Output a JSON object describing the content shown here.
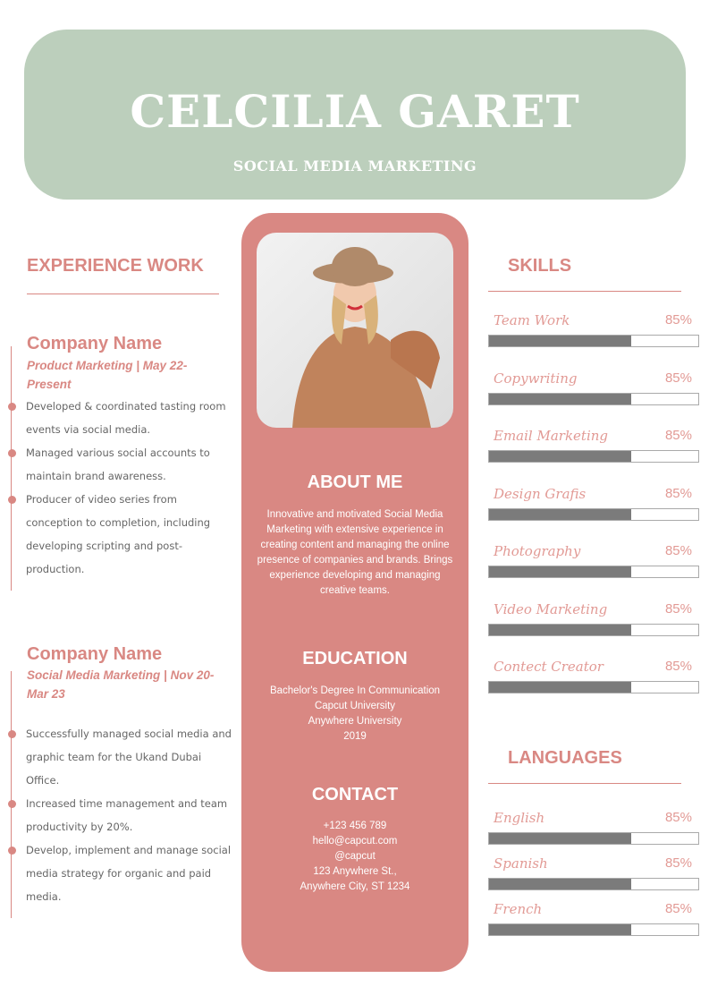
{
  "header": {
    "name": "CELCILIA GARET",
    "role": "SOCIAL MEDIA MARKETING"
  },
  "experience": {
    "title": "EXPERIENCE WORK",
    "jobs": [
      {
        "company": "Company Name",
        "subtitle": "Product Marketing | May 22-Present",
        "bullets": [
          "Developed & coordinated tasting room events via social media.",
          "Managed various social accounts to maintain brand awareness.",
          "Producer of video series from conception to completion, including developing scripting and post-production."
        ]
      },
      {
        "company": "Company Name",
        "subtitle": "Social Media Marketing | Nov 20-Mar 23",
        "bullets": [
          "Successfully managed social media and graphic team for the Ukand Dubai Office.",
          "Increased time management and team productivity by 20%.",
          "Develop, implement and manage social media strategy for organic and paid media."
        ]
      }
    ]
  },
  "about": {
    "title": "ABOUT ME",
    "text": "Innovative and motivated Social Media Marketing with extensive experience in creating content and managing the online presence of companies and brands. Brings experience developing and managing creative teams."
  },
  "education": {
    "title": "EDUCATION",
    "lines": [
      "Bachelor's Degree In Communication",
      "Capcut University",
      "Anywhere University",
      "2019"
    ]
  },
  "contact": {
    "title": "CONTACT",
    "lines": [
      "+123  456 789",
      "hello@capcut.com",
      "@capcut",
      "123 Anywhere St.,",
      "Anywhere City, ST 1234"
    ]
  },
  "skills": {
    "title": "SKILLS",
    "items": [
      {
        "label": "Team Work",
        "pct": "85%",
        "fill": 0.68
      },
      {
        "label": "Copywriting",
        "pct": "85%",
        "fill": 0.68
      },
      {
        "label": "Email Marketing",
        "pct": "85%",
        "fill": 0.68
      },
      {
        "label": "Design Grafis",
        "pct": "85%",
        "fill": 0.68
      },
      {
        "label": "Photography",
        "pct": "85%",
        "fill": 0.68
      },
      {
        "label": "Video Marketing",
        "pct": "85%",
        "fill": 0.68
      },
      {
        "label": "Contect Creator",
        "pct": "85%",
        "fill": 0.68
      }
    ]
  },
  "languages": {
    "title": "LANGUAGES",
    "items": [
      {
        "label": "English",
        "pct": "85%",
        "fill": 0.68
      },
      {
        "label": "Spanish",
        "pct": "85%",
        "fill": 0.68
      },
      {
        "label": "French",
        "pct": "85%",
        "fill": 0.68
      }
    ]
  }
}
